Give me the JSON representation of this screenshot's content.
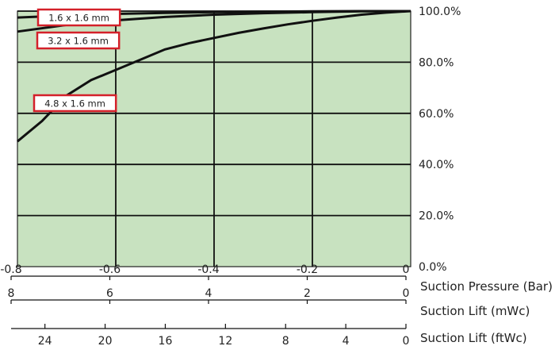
{
  "chart_data": {
    "type": "line",
    "x_axis": {
      "title": "Suction Pressure (Bar)",
      "ticks": [
        -0.8,
        -0.6,
        -0.4,
        -0.2,
        0
      ],
      "tick_labels": [
        "-0.8",
        "-0.6",
        "-0.4",
        "-0.2",
        "0"
      ],
      "range": [
        -0.8,
        0
      ]
    },
    "secondary_axes": [
      {
        "title": "Suction Lift (mWc)",
        "ticks": [
          8,
          6,
          4,
          2,
          0
        ],
        "tick_labels": [
          "8",
          "6",
          "4",
          "2",
          "0"
        ],
        "range": [
          8,
          0
        ]
      },
      {
        "title": "Suction Lift (ftWc)",
        "ticks": [
          24,
          20,
          16,
          12,
          8,
          4,
          0
        ],
        "tick_labels": [
          "24",
          "20",
          "16",
          "12",
          "8",
          "4",
          "0"
        ],
        "range": [
          26.25,
          0
        ]
      }
    ],
    "y_axis": {
      "title": "",
      "ticks": [
        0,
        20,
        40,
        60,
        80,
        100
      ],
      "tick_labels": [
        "0.0%",
        "20.0%",
        "40.0%",
        "60.0%",
        "80.0%",
        "100.0%"
      ],
      "range": [
        0,
        100
      ],
      "side": "right"
    },
    "grid": true,
    "background_color": "#c8e2c0",
    "series": [
      {
        "name": "1.6 x 1.6 mm",
        "points": [
          [
            -0.8,
            97.5
          ],
          [
            -0.7,
            98.3
          ],
          [
            -0.6,
            98.9
          ],
          [
            -0.5,
            99.3
          ],
          [
            -0.4,
            99.6
          ],
          [
            -0.3,
            99.8
          ],
          [
            -0.2,
            99.9
          ],
          [
            -0.1,
            100
          ],
          [
            0,
            100
          ]
        ]
      },
      {
        "name": "3.2 x 1.6 mm",
        "points": [
          [
            -0.8,
            92
          ],
          [
            -0.7,
            94.6
          ],
          [
            -0.6,
            96.4
          ],
          [
            -0.5,
            97.7
          ],
          [
            -0.4,
            98.6
          ],
          [
            -0.3,
            99.2
          ],
          [
            -0.2,
            99.6
          ],
          [
            -0.1,
            99.9
          ],
          [
            0,
            100
          ]
        ]
      },
      {
        "name": "4.8 x 1.6 mm",
        "points": [
          [
            -0.8,
            49
          ],
          [
            -0.75,
            57
          ],
          [
            -0.7,
            67
          ],
          [
            -0.65,
            73
          ],
          [
            -0.6,
            77
          ],
          [
            -0.55,
            81
          ],
          [
            -0.5,
            85
          ],
          [
            -0.45,
            87.5
          ],
          [
            -0.4,
            89.5
          ],
          [
            -0.35,
            91.5
          ],
          [
            -0.3,
            93.2
          ],
          [
            -0.25,
            94.8
          ],
          [
            -0.2,
            96.2
          ],
          [
            -0.15,
            97.5
          ],
          [
            -0.1,
            98.6
          ],
          [
            -0.05,
            99.4
          ],
          [
            0,
            100
          ]
        ]
      }
    ],
    "label_color": "#d4202a"
  }
}
